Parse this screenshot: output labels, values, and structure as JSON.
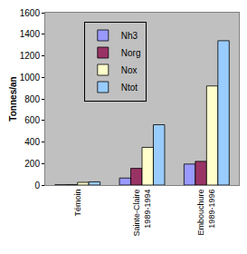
{
  "chart_data": {
    "type": "bar",
    "y_label": "Tonnes/an",
    "categories": [
      "Témoin",
      "Sainte-Claire 1989-1994",
      "Embouchure 1989-1996"
    ],
    "series": [
      {
        "name": "Nh3",
        "color": "#9999ff",
        "values": [
          2,
          65,
          195
        ]
      },
      {
        "name": "Norg",
        "color": "#993366",
        "values": [
          3,
          155,
          220
        ]
      },
      {
        "name": "Nox",
        "color": "#ffffcc",
        "values": [
          25,
          350,
          920
        ]
      },
      {
        "name": "Ntot",
        "color": "#99ccff",
        "values": [
          30,
          560,
          1340
        ]
      }
    ],
    "ylim": [
      0,
      1600
    ],
    "yticks": [
      0,
      200,
      400,
      600,
      800,
      1000,
      1200,
      1400,
      1600
    ],
    "grid": false,
    "legend": "upper left"
  }
}
